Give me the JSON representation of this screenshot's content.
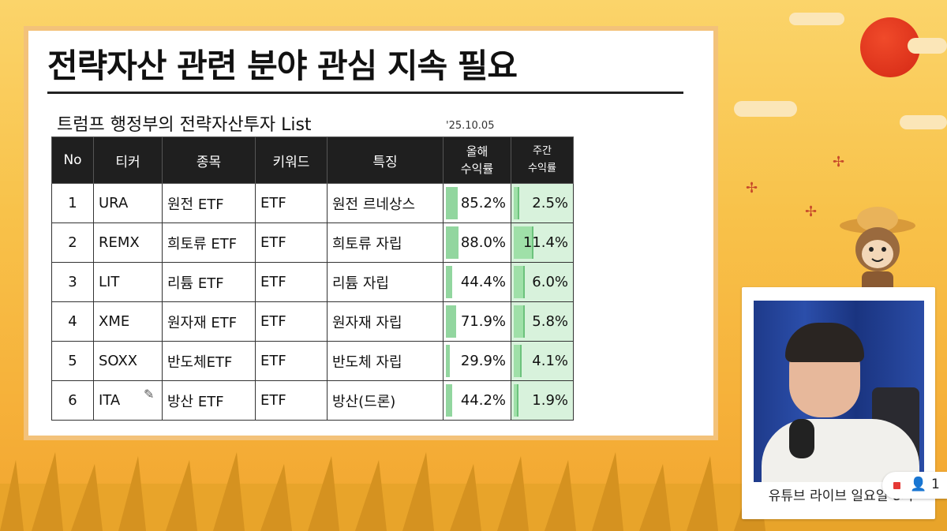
{
  "slide": {
    "title": "전략자산 관련 분야 관심 지속 필요",
    "subtitle": "트럼프 행정부의 전략자산투자 List",
    "date": "'25.10.05"
  },
  "table": {
    "headers": {
      "no": "No",
      "ticker": "티커",
      "name": "종목",
      "keyword": "키워드",
      "feature": "특징",
      "ytd_line1": "올해",
      "ytd_line2": "수익률",
      "weekly_line1": "주간",
      "weekly_line2": "수익률"
    },
    "rows": [
      {
        "no": "1",
        "ticker": "URA",
        "name": "원전 ETF",
        "keyword": "ETF",
        "feature": "원전 르네상스",
        "ytd": "85.2%",
        "ytd_value": 85.2,
        "weekly": "2.5%",
        "weekly_value": 2.5
      },
      {
        "no": "2",
        "ticker": "REMX",
        "name": "희토류 ETF",
        "keyword": "ETF",
        "feature": "희토류 자립",
        "ytd": "88.0%",
        "ytd_value": 88.0,
        "weekly": "11.4%",
        "weekly_value": 11.4
      },
      {
        "no": "3",
        "ticker": "LIT",
        "name": "리튬 ETF",
        "keyword": "ETF",
        "feature": "리튬 자립",
        "ytd": "44.4%",
        "ytd_value": 44.4,
        "weekly": "6.0%",
        "weekly_value": 6.0
      },
      {
        "no": "4",
        "ticker": "XME",
        "name": "원자재 ETF",
        "keyword": "ETF",
        "feature": "원자재 자립",
        "ytd": "71.9%",
        "ytd_value": 71.9,
        "weekly": "5.8%",
        "weekly_value": 5.8
      },
      {
        "no": "5",
        "ticker": "SOXX",
        "name": "반도체ETF",
        "keyword": "ETF",
        "feature": "반도체 자립",
        "ytd": "29.9%",
        "ytd_value": 29.9,
        "weekly": "4.1%",
        "weekly_value": 4.1
      },
      {
        "no": "6",
        "ticker": "ITA",
        "name": "방산 ETF",
        "keyword": "ETF",
        "feature": "방산(드론)",
        "ytd": "44.2%",
        "ytd_value": 44.2,
        "weekly": "1.9%",
        "weekly_value": 1.9
      }
    ]
  },
  "webcam": {
    "caption": "유튜브 라이브 일요일 8시"
  },
  "live_badge": {
    "viewer_count": "1"
  },
  "colors": {
    "background": "#f8c24a",
    "header_bg": "#1f1f1f",
    "bar_green": "#7fcf8e",
    "weekly_bg": "#d8f2dc",
    "sun": "#e0301a"
  },
  "icons": [
    "pencil-icon",
    "person-icon",
    "live-dot-icon"
  ]
}
